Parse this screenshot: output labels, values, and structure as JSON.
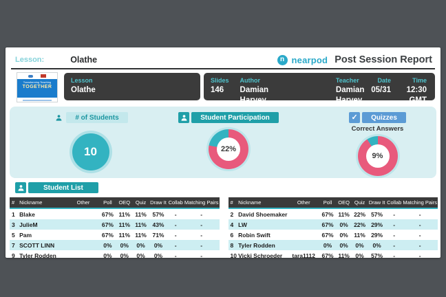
{
  "header": {
    "lesson_label": "Lesson:",
    "lesson_value": "Olathe",
    "brand_glyph": "n",
    "brand": "nearpod",
    "report_title": "Post Session Report"
  },
  "thumbnail": {
    "line1": "Transforming Teaching",
    "line2": "TOGETHER"
  },
  "info": {
    "lesson": {
      "label": "Lesson",
      "value": "Olathe"
    },
    "slides": {
      "label": "Slides",
      "value": "146"
    },
    "author": {
      "label": "Author",
      "value": "Damian Harvey"
    },
    "teacher": {
      "label": "Teacher",
      "value": "Damian Harvey"
    },
    "date": {
      "label": "Date",
      "value": "05/31"
    },
    "time": {
      "label": "Time",
      "value": "12:30 GMT"
    }
  },
  "stats": {
    "students": {
      "label": "# of Students",
      "value": "10"
    },
    "participation": {
      "label": "Student Participation",
      "percent": 22,
      "display": "22%"
    },
    "quizzes": {
      "label": "Quizzes",
      "check": "✓",
      "sublabel": "Correct Answers",
      "percent": 9,
      "display": "9%"
    }
  },
  "student_list": {
    "title": "Student List",
    "columns": [
      "#",
      "Nickname",
      "Other",
      "Poll",
      "OEQ",
      "Quiz",
      "Draw It",
      "Collab",
      "Matching Pairs"
    ],
    "tables": [
      {
        "rows": [
          [
            "1",
            "Blake",
            "",
            "67%",
            "11%",
            "11%",
            "57%",
            "-",
            "-"
          ],
          [
            "3",
            "JulieM",
            "",
            "67%",
            "11%",
            "11%",
            "43%",
            "-",
            "-"
          ],
          [
            "5",
            "Pam",
            "",
            "67%",
            "11%",
            "11%",
            "71%",
            "-",
            "-"
          ],
          [
            "7",
            "SCOTT LINN",
            "",
            "0%",
            "0%",
            "0%",
            "0%",
            "-",
            "-"
          ],
          [
            "9",
            "Tyler Rodden",
            "",
            "0%",
            "0%",
            "0%",
            "0%",
            "-",
            "-"
          ]
        ]
      },
      {
        "rows": [
          [
            "2",
            "David Shoemaker",
            "",
            "67%",
            "11%",
            "22%",
            "57%",
            "-",
            "-"
          ],
          [
            "4",
            "LW",
            "",
            "67%",
            "0%",
            "22%",
            "29%",
            "-",
            "-"
          ],
          [
            "6",
            "Robin Swift",
            "",
            "67%",
            "0%",
            "11%",
            "29%",
            "-",
            "-"
          ],
          [
            "8",
            "Tyler Rodden",
            "",
            "0%",
            "0%",
            "0%",
            "0%",
            "-",
            "-"
          ],
          [
            "10",
            "Vicki Schroeder",
            "tara1112",
            "67%",
            "11%",
            "0%",
            "57%",
            "-",
            "-"
          ]
        ]
      }
    ]
  },
  "colors": {
    "teal": "#33b3c1",
    "pink": "#e85a7c",
    "blue": "#5b9bd5",
    "dark_panel": "#3b3b3b",
    "panel_bg": "#d9eff2"
  }
}
